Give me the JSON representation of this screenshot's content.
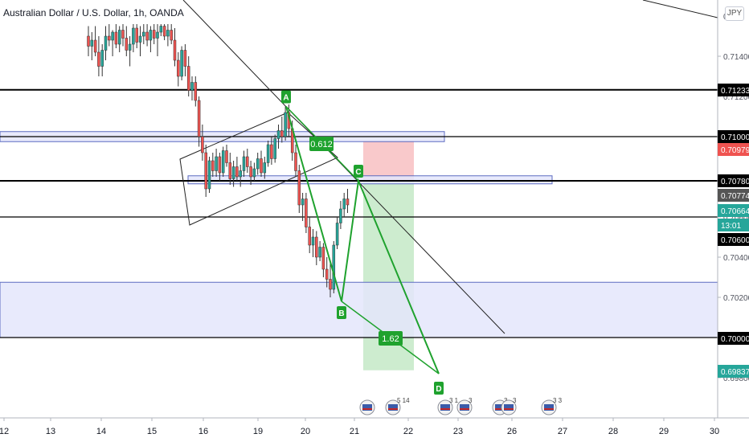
{
  "header": {
    "symbol_title": "Australian Dollar / U.S. Dollar, 1h, OANDA",
    "currency_button": "JPY"
  },
  "colors": {
    "candle_up": "#26a69a",
    "candle_down": "#ef5350",
    "pattern_green": "#1fa22e",
    "zone_fill": "#e4e6fb",
    "zone_border": "#5c6bc0",
    "target_fill": "#cdeccf",
    "stop_fill": "#f9c9cb"
  },
  "chart_data": {
    "type": "candlestick",
    "title": "Australian Dollar / U.S. Dollar, 1h, OANDA",
    "price_axis": {
      "ticks": [
        "0.71400",
        "0.71200",
        "0.71000",
        "0.70800",
        "0.70600",
        "0.70400",
        "0.70200",
        "0.70000",
        "0.69800"
      ],
      "highlighted_levels": [
        {
          "label": "0.71233",
          "style": "black"
        },
        {
          "label": "0.71000",
          "style": "black"
        },
        {
          "label": "0.70979",
          "style": "red"
        },
        {
          "label": "0.70780",
          "style": "black"
        },
        {
          "label": "0.70774",
          "style": "gray"
        },
        {
          "label": "0.70664",
          "style": "green"
        },
        {
          "label": "13:01",
          "style": "green"
        },
        {
          "label": "0.70600",
          "style": "black"
        },
        {
          "label": "0.70000",
          "style": "black"
        },
        {
          "label": "0.69837",
          "style": "green"
        }
      ],
      "top_partial_label": "0"
    },
    "time_axis": {
      "ticks": [
        "12",
        "13",
        "14",
        "15",
        "16",
        "19",
        "20",
        "21",
        "22",
        "23",
        "26",
        "27",
        "28",
        "29",
        "30"
      ]
    },
    "pattern": {
      "points": [
        {
          "label": "A",
          "price": 0.7115
        },
        {
          "label": "B",
          "price": 0.7018
        },
        {
          "label": "C",
          "price": 0.7078
        },
        {
          "label": "D",
          "price": 0.6982
        }
      ],
      "ratios": [
        "0.612",
        "1.62"
      ]
    },
    "position": {
      "entry": 0.7078,
      "stop": 0.70979,
      "target": 0.69837
    },
    "horizontal_levels": [
      0.71233,
      0.71,
      0.7078,
      0.706,
      0.7
    ],
    "zones": [
      {
        "low": 0.70975,
        "high": 0.71025
      },
      {
        "low": 0.70765,
        "high": 0.70805
      },
      {
        "low": 0.7,
        "high": 0.70275
      }
    ],
    "event_markers": [
      {
        "badge": ""
      },
      {
        "badge": "5 14"
      },
      {
        "badge": "3 1"
      },
      {
        "badge": "3"
      },
      {
        "badge": "3"
      },
      {
        "badge": "3"
      },
      {
        "badge": "3"
      },
      {
        "badge": "3 3"
      }
    ],
    "candles": [
      {
        "o": 0.715,
        "h": 0.7155,
        "l": 0.714,
        "c": 0.7145
      },
      {
        "o": 0.7145,
        "h": 0.7152,
        "l": 0.7138,
        "c": 0.7148
      },
      {
        "o": 0.7148,
        "h": 0.7155,
        "l": 0.714,
        "c": 0.7142
      },
      {
        "o": 0.7142,
        "h": 0.715,
        "l": 0.713,
        "c": 0.7135
      },
      {
        "o": 0.7135,
        "h": 0.7146,
        "l": 0.713,
        "c": 0.7143
      },
      {
        "o": 0.7143,
        "h": 0.7155,
        "l": 0.7138,
        "c": 0.715
      },
      {
        "o": 0.715,
        "h": 0.7156,
        "l": 0.7145,
        "c": 0.7148
      },
      {
        "o": 0.7148,
        "h": 0.7153,
        "l": 0.714,
        "c": 0.7152
      },
      {
        "o": 0.7152,
        "h": 0.7156,
        "l": 0.7144,
        "c": 0.7146
      },
      {
        "o": 0.7146,
        "h": 0.7155,
        "l": 0.7142,
        "c": 0.7153
      },
      {
        "o": 0.7153,
        "h": 0.7156,
        "l": 0.7145,
        "c": 0.7149
      },
      {
        "o": 0.7149,
        "h": 0.7155,
        "l": 0.714,
        "c": 0.7143
      },
      {
        "o": 0.7143,
        "h": 0.715,
        "l": 0.7135,
        "c": 0.7146
      },
      {
        "o": 0.7146,
        "h": 0.7156,
        "l": 0.7142,
        "c": 0.7154
      },
      {
        "o": 0.7154,
        "h": 0.7156,
        "l": 0.7144,
        "c": 0.7147
      },
      {
        "o": 0.7147,
        "h": 0.7155,
        "l": 0.714,
        "c": 0.715
      },
      {
        "o": 0.715,
        "h": 0.7156,
        "l": 0.7146,
        "c": 0.7152
      },
      {
        "o": 0.7152,
        "h": 0.7156,
        "l": 0.7145,
        "c": 0.7148
      },
      {
        "o": 0.7148,
        "h": 0.7155,
        "l": 0.7142,
        "c": 0.7153
      },
      {
        "o": 0.7153,
        "h": 0.7156,
        "l": 0.7146,
        "c": 0.7149
      },
      {
        "o": 0.7149,
        "h": 0.7156,
        "l": 0.714,
        "c": 0.7152
      },
      {
        "o": 0.7152,
        "h": 0.7156,
        "l": 0.715,
        "c": 0.7155
      },
      {
        "o": 0.7155,
        "h": 0.7156,
        "l": 0.7148,
        "c": 0.715
      },
      {
        "o": 0.715,
        "h": 0.7156,
        "l": 0.7145,
        "c": 0.7153
      },
      {
        "o": 0.7153,
        "h": 0.7156,
        "l": 0.7146,
        "c": 0.7148
      },
      {
        "o": 0.7148,
        "h": 0.7154,
        "l": 0.7135,
        "c": 0.7138
      },
      {
        "o": 0.7138,
        "h": 0.7142,
        "l": 0.7125,
        "c": 0.713
      },
      {
        "o": 0.713,
        "h": 0.7145,
        "l": 0.7128,
        "c": 0.7143
      },
      {
        "o": 0.7143,
        "h": 0.7146,
        "l": 0.713,
        "c": 0.7135
      },
      {
        "o": 0.7135,
        "h": 0.714,
        "l": 0.712,
        "c": 0.7123
      },
      {
        "o": 0.7123,
        "h": 0.713,
        "l": 0.7118,
        "c": 0.7127
      },
      {
        "o": 0.7127,
        "h": 0.713,
        "l": 0.7115,
        "c": 0.7118
      },
      {
        "o": 0.7118,
        "h": 0.712,
        "l": 0.7095,
        "c": 0.71
      },
      {
        "o": 0.71,
        "h": 0.7106,
        "l": 0.7088,
        "c": 0.7092
      },
      {
        "o": 0.7092,
        "h": 0.7096,
        "l": 0.707,
        "c": 0.7074
      },
      {
        "o": 0.7074,
        "h": 0.709,
        "l": 0.7072,
        "c": 0.7088
      },
      {
        "o": 0.7088,
        "h": 0.7092,
        "l": 0.708,
        "c": 0.7083
      },
      {
        "o": 0.7083,
        "h": 0.7094,
        "l": 0.708,
        "c": 0.709
      },
      {
        "o": 0.709,
        "h": 0.7092,
        "l": 0.7078,
        "c": 0.7082
      },
      {
        "o": 0.7082,
        "h": 0.7095,
        "l": 0.708,
        "c": 0.7093
      },
      {
        "o": 0.7093,
        "h": 0.7096,
        "l": 0.7085,
        "c": 0.7087
      },
      {
        "o": 0.7087,
        "h": 0.7092,
        "l": 0.7076,
        "c": 0.7079
      },
      {
        "o": 0.7079,
        "h": 0.7088,
        "l": 0.7075,
        "c": 0.7085
      },
      {
        "o": 0.7085,
        "h": 0.709,
        "l": 0.7078,
        "c": 0.708
      },
      {
        "o": 0.708,
        "h": 0.7086,
        "l": 0.7075,
        "c": 0.7083
      },
      {
        "o": 0.7083,
        "h": 0.7093,
        "l": 0.708,
        "c": 0.709
      },
      {
        "o": 0.709,
        "h": 0.7094,
        "l": 0.7082,
        "c": 0.7085
      },
      {
        "o": 0.7085,
        "h": 0.7088,
        "l": 0.7076,
        "c": 0.708
      },
      {
        "o": 0.708,
        "h": 0.7087,
        "l": 0.7078,
        "c": 0.7084
      },
      {
        "o": 0.7084,
        "h": 0.7092,
        "l": 0.7081,
        "c": 0.7089
      },
      {
        "o": 0.7089,
        "h": 0.7093,
        "l": 0.708,
        "c": 0.7082
      },
      {
        "o": 0.7082,
        "h": 0.709,
        "l": 0.7079,
        "c": 0.7087
      },
      {
        "o": 0.7087,
        "h": 0.7098,
        "l": 0.7085,
        "c": 0.7096
      },
      {
        "o": 0.7096,
        "h": 0.71,
        "l": 0.7086,
        "c": 0.7089
      },
      {
        "o": 0.7089,
        "h": 0.7101,
        "l": 0.7087,
        "c": 0.7099
      },
      {
        "o": 0.7099,
        "h": 0.7106,
        "l": 0.7094,
        "c": 0.7103
      },
      {
        "o": 0.7103,
        "h": 0.711,
        "l": 0.7097,
        "c": 0.71
      },
      {
        "o": 0.71,
        "h": 0.7115,
        "l": 0.7098,
        "c": 0.7112
      },
      {
        "o": 0.7112,
        "h": 0.7116,
        "l": 0.71,
        "c": 0.7104
      },
      {
        "o": 0.7104,
        "h": 0.7108,
        "l": 0.7088,
        "c": 0.7092
      },
      {
        "o": 0.7092,
        "h": 0.7096,
        "l": 0.708,
        "c": 0.7083
      },
      {
        "o": 0.7083,
        "h": 0.7086,
        "l": 0.7062,
        "c": 0.7066
      },
      {
        "o": 0.7066,
        "h": 0.7072,
        "l": 0.7058,
        "c": 0.7069
      },
      {
        "o": 0.7069,
        "h": 0.7072,
        "l": 0.7052,
        "c": 0.7055
      },
      {
        "o": 0.7055,
        "h": 0.706,
        "l": 0.7042,
        "c": 0.7046
      },
      {
        "o": 0.7046,
        "h": 0.7054,
        "l": 0.704,
        "c": 0.705
      },
      {
        "o": 0.705,
        "h": 0.7053,
        "l": 0.7036,
        "c": 0.704
      },
      {
        "o": 0.704,
        "h": 0.7048,
        "l": 0.7038,
        "c": 0.7045
      },
      {
        "o": 0.7045,
        "h": 0.7047,
        "l": 0.703,
        "c": 0.7034
      },
      {
        "o": 0.7034,
        "h": 0.704,
        "l": 0.7025,
        "c": 0.7029
      },
      {
        "o": 0.7029,
        "h": 0.7038,
        "l": 0.702,
        "c": 0.7024
      },
      {
        "o": 0.7024,
        "h": 0.7048,
        "l": 0.7022,
        "c": 0.7046
      },
      {
        "o": 0.7046,
        "h": 0.706,
        "l": 0.7044,
        "c": 0.7057
      },
      {
        "o": 0.7057,
        "h": 0.7068,
        "l": 0.7054,
        "c": 0.7064
      },
      {
        "o": 0.7064,
        "h": 0.7072,
        "l": 0.706,
        "c": 0.7069
      },
      {
        "o": 0.7069,
        "h": 0.7074,
        "l": 0.7062,
        "c": 0.7066
      }
    ]
  }
}
